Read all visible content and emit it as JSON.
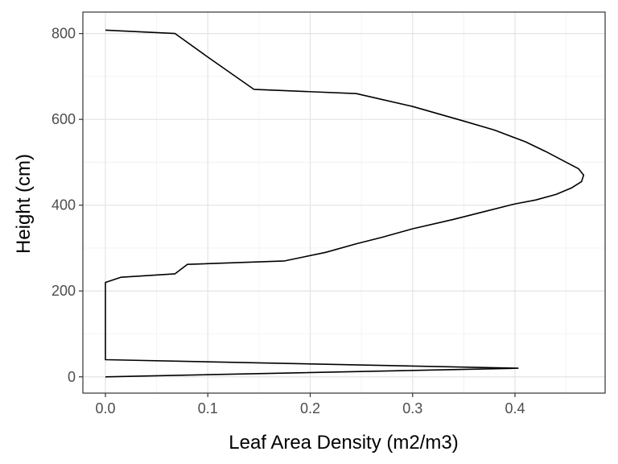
{
  "chart_data": {
    "type": "line",
    "title": "",
    "xlabel": "Leaf Area Density (m2/m3)",
    "ylabel": "Height (cm)",
    "xlim": [
      -0.022,
      0.488
    ],
    "ylim": [
      -38,
      850
    ],
    "x_ticks": [
      0.0,
      0.1,
      0.2,
      0.3,
      0.4
    ],
    "x_tick_labels": [
      "0.0",
      "0.1",
      "0.2",
      "0.3",
      "0.4"
    ],
    "y_ticks": [
      0,
      200,
      400,
      600,
      800
    ],
    "y_tick_labels": [
      "0",
      "200",
      "400",
      "600",
      "800"
    ],
    "grid": true,
    "legend": "none",
    "series": [
      {
        "color": "#000000",
        "x": [
          0.0,
          0.068,
          0.1,
          0.145,
          0.245,
          0.3,
          0.35,
          0.38,
          0.41,
          0.43,
          0.45,
          0.462,
          0.467,
          0.465,
          0.455,
          0.44,
          0.42,
          0.4,
          0.37,
          0.34,
          0.3,
          0.27,
          0.245,
          0.215,
          0.195,
          0.175,
          0.08,
          0.068,
          0.015,
          0.0,
          0.0,
          0.403,
          0.0
        ],
        "y": [
          808,
          800,
          745,
          670,
          660,
          630,
          596,
          575,
          548,
          525,
          500,
          485,
          470,
          455,
          440,
          425,
          412,
          403,
          385,
          367,
          345,
          325,
          310,
          290,
          280,
          270,
          262,
          240,
          232,
          220,
          40,
          20,
          0
        ]
      }
    ]
  }
}
